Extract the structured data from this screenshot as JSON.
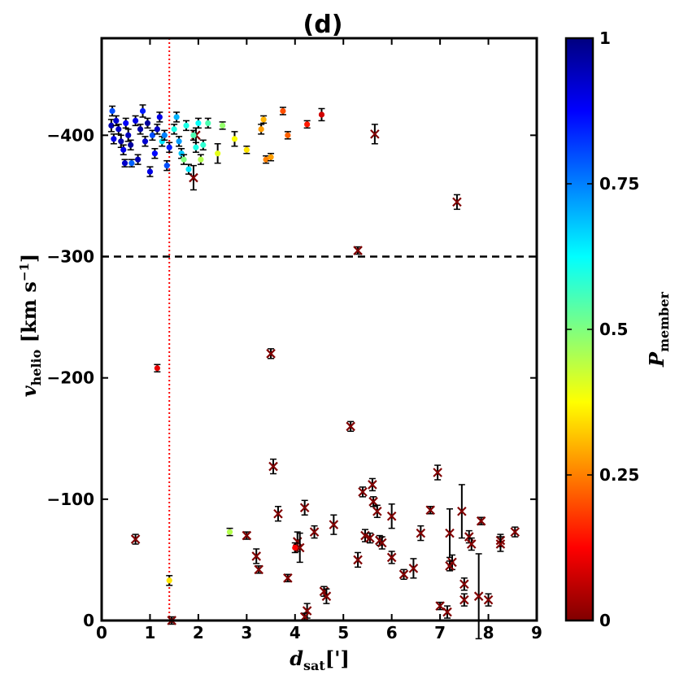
{
  "chart_data": {
    "type": "scatter",
    "title": "(d)",
    "xlabel": {
      "main": "d",
      "sub": "sat",
      "unit": "[']"
    },
    "ylabel": {
      "main": "v",
      "sub": "helio",
      "unit": " [km s",
      "sup": "−1",
      "close": "]"
    },
    "xlim": [
      0,
      9
    ],
    "ylim": [
      0,
      -480
    ],
    "xticks": [
      0,
      1,
      2,
      3,
      4,
      5,
      6,
      7,
      8,
      9
    ],
    "yticks": [
      0,
      -100,
      -200,
      -300,
      -400
    ],
    "ytick_labels": [
      "0",
      "−100",
      "−200",
      "−300",
      "−400"
    ],
    "hlines": [
      -300,
      -480
    ],
    "vline": 1.4,
    "colorbar": {
      "label": {
        "main": "P",
        "sub": "member"
      },
      "range": [
        0,
        1
      ],
      "ticks": [
        0,
        0.25,
        0.5,
        0.75,
        1
      ],
      "tick_labels": [
        "0",
        "0.25",
        "0.5",
        "0.75",
        "1"
      ]
    },
    "members": [
      [
        0.2,
        -408,
        0.95,
        5
      ],
      [
        0.25,
        -397,
        0.9,
        4
      ],
      [
        0.3,
        -412,
        0.92,
        4
      ],
      [
        0.22,
        -420,
        0.8,
        4
      ],
      [
        0.35,
        -405,
        0.93,
        4
      ],
      [
        0.4,
        -395,
        0.96,
        5
      ],
      [
        0.45,
        -388,
        0.9,
        4
      ],
      [
        0.5,
        -410,
        0.88,
        4
      ],
      [
        0.55,
        -400,
        0.94,
        5
      ],
      [
        0.6,
        -392,
        0.97,
        4
      ],
      [
        0.48,
        -377,
        0.93,
        3
      ],
      [
        0.62,
        -377,
        0.78,
        3
      ],
      [
        0.7,
        -412,
        0.9,
        4
      ],
      [
        0.75,
        -380,
        0.95,
        4
      ],
      [
        0.8,
        -405,
        0.96,
        4
      ],
      [
        0.85,
        -420,
        0.85,
        5
      ],
      [
        0.9,
        -395,
        0.92,
        4
      ],
      [
        0.95,
        -410,
        0.97,
        4
      ],
      [
        1.0,
        -370,
        0.9,
        4
      ],
      [
        1.05,
        -400,
        0.8,
        4
      ],
      [
        1.1,
        -385,
        0.87,
        4
      ],
      [
        1.15,
        -405,
        0.93,
        4
      ],
      [
        1.2,
        -415,
        0.9,
        4
      ],
      [
        1.25,
        -395,
        0.65,
        4
      ],
      [
        1.3,
        -400,
        0.75,
        4
      ],
      [
        1.35,
        -375,
        0.8,
        4
      ],
      [
        1.4,
        -390,
        0.85,
        4
      ],
      [
        1.5,
        -405,
        0.6,
        4
      ],
      [
        1.55,
        -415,
        0.7,
        4
      ],
      [
        1.6,
        -395,
        0.72,
        4
      ],
      [
        1.65,
        -385,
        0.68,
        4
      ],
      [
        1.7,
        -380,
        0.5,
        4
      ],
      [
        1.75,
        -408,
        0.6,
        4
      ],
      [
        1.8,
        -372,
        0.65,
        4
      ],
      [
        1.9,
        -400,
        0.55,
        4
      ],
      [
        1.95,
        -390,
        0.6,
        4
      ],
      [
        2.0,
        -410,
        0.62,
        4
      ],
      [
        2.05,
        -380,
        0.45,
        4
      ],
      [
        2.1,
        -392,
        0.58,
        4
      ],
      [
        2.2,
        -410,
        0.55,
        4
      ],
      [
        2.4,
        -385,
        0.4,
        8
      ],
      [
        2.5,
        -408,
        0.48,
        3
      ],
      [
        2.75,
        -397,
        0.38,
        6
      ],
      [
        3.0,
        -388,
        0.35,
        3
      ],
      [
        3.3,
        -405,
        0.28,
        4
      ],
      [
        3.35,
        -413,
        0.3,
        3
      ],
      [
        3.4,
        -380,
        0.25,
        3
      ],
      [
        3.5,
        -382,
        0.28,
        3
      ],
      [
        3.75,
        -420,
        0.2,
        3
      ],
      [
        3.85,
        -400,
        0.22,
        3
      ],
      [
        4.25,
        -409,
        0.15,
        3
      ],
      [
        4.55,
        -417,
        0.08,
        5
      ],
      [
        1.15,
        -208,
        0.1,
        3
      ],
      [
        1.4,
        -33,
        0.35,
        4
      ],
      [
        2.65,
        -73,
        0.45,
        3
      ],
      [
        4.0,
        -60,
        0.12,
        4
      ]
    ],
    "nonmembers": [
      [
        1.9,
        -365,
        10
      ],
      [
        1.95,
        -400,
        6
      ],
      [
        5.65,
        -401,
        8
      ],
      [
        7.35,
        -345,
        6
      ],
      [
        5.3,
        -305,
        3
      ],
      [
        3.5,
        -220,
        4
      ],
      [
        5.15,
        -160,
        4
      ],
      [
        3.55,
        -127,
        6
      ],
      [
        6.95,
        -122,
        6
      ],
      [
        0.7,
        -67,
        4
      ],
      [
        3.0,
        -70,
        3
      ],
      [
        3.2,
        -53,
        6
      ],
      [
        3.25,
        -42,
        3
      ],
      [
        3.65,
        -88,
        6
      ],
      [
        3.85,
        -35,
        3
      ],
      [
        4.05,
        -65,
        8
      ],
      [
        4.1,
        -60,
        12
      ],
      [
        4.2,
        -93,
        6
      ],
      [
        4.25,
        -8,
        6
      ],
      [
        4.2,
        -3,
        3
      ],
      [
        4.4,
        -73,
        5
      ],
      [
        4.6,
        -24,
        4
      ],
      [
        4.65,
        -20,
        6
      ],
      [
        4.8,
        -79,
        8
      ],
      [
        5.3,
        -50,
        6
      ],
      [
        5.4,
        -106,
        4
      ],
      [
        5.45,
        -70,
        5
      ],
      [
        5.55,
        -68,
        4
      ],
      [
        5.6,
        -112,
        5
      ],
      [
        5.62,
        -98,
        4
      ],
      [
        5.7,
        -90,
        5
      ],
      [
        5.75,
        -66,
        4
      ],
      [
        5.8,
        -64,
        5
      ],
      [
        6.0,
        -86,
        10
      ],
      [
        6.0,
        -52,
        5
      ],
      [
        6.25,
        -38,
        4
      ],
      [
        6.45,
        -43,
        8
      ],
      [
        6.6,
        -72,
        6
      ],
      [
        6.8,
        -91,
        3
      ],
      [
        7.0,
        -12,
        3
      ],
      [
        7.15,
        -7,
        5
      ],
      [
        7.2,
        -72,
        20
      ],
      [
        7.25,
        -48,
        6
      ],
      [
        7.2,
        -45,
        4
      ],
      [
        7.45,
        -90,
        22
      ],
      [
        7.5,
        -30,
        5
      ],
      [
        7.5,
        -17,
        5
      ],
      [
        7.6,
        -69,
        5
      ],
      [
        7.65,
        -63,
        5
      ],
      [
        7.8,
        -20,
        35
      ],
      [
        7.85,
        -82,
        3
      ],
      [
        8.0,
        -17,
        5
      ],
      [
        8.25,
        -66,
        5
      ],
      [
        8.25,
        -63,
        6
      ],
      [
        8.55,
        -73,
        4
      ],
      [
        1.45,
        0,
        3
      ]
    ]
  }
}
